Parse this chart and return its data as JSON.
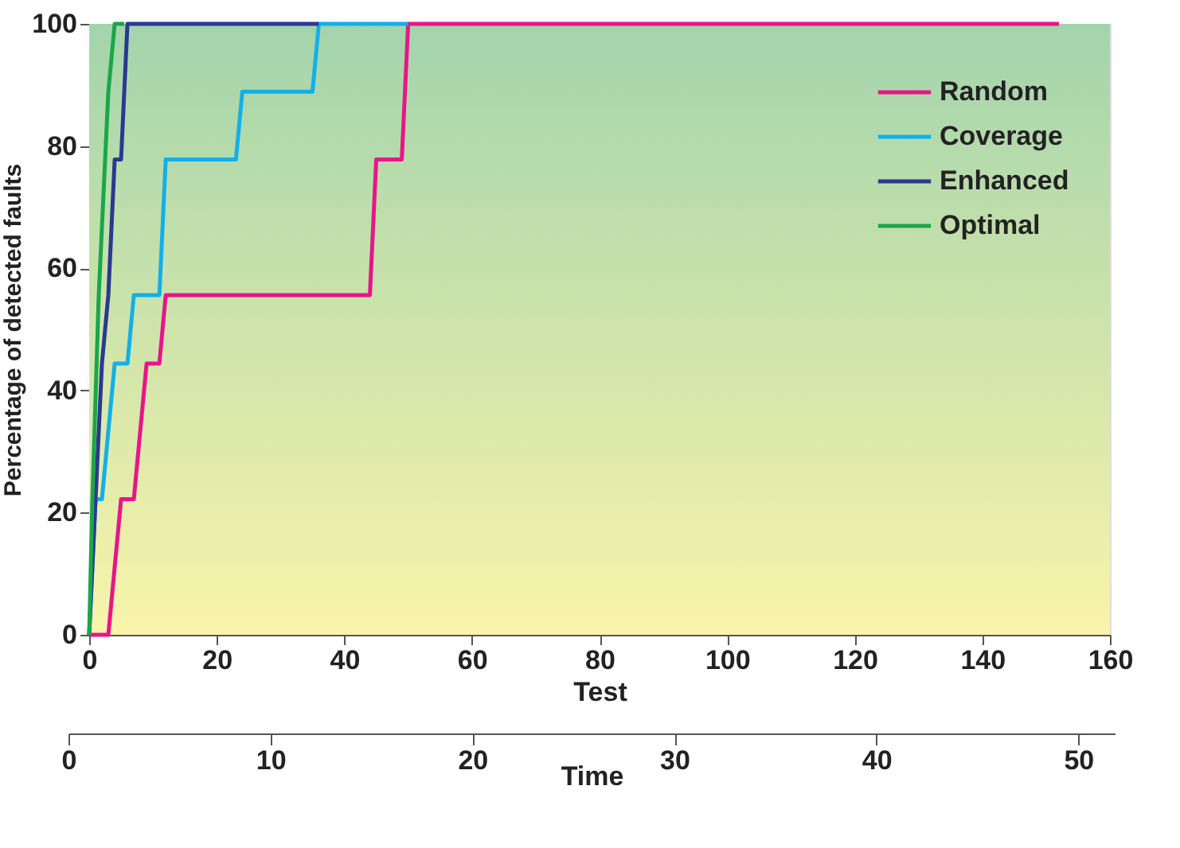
{
  "chart_data": {
    "type": "line",
    "xlabel": "Test",
    "ylabel": "Percentage of detected faults",
    "x2label": "Time",
    "xlim": [
      0,
      160
    ],
    "xticks": [
      0,
      20,
      40,
      60,
      80,
      100,
      120,
      140,
      160
    ],
    "ylim": [
      0,
      100
    ],
    "yticks": [
      0,
      20,
      40,
      60,
      80,
      100
    ],
    "x2lim": [
      0,
      51.8
    ],
    "x2ticks": [
      0,
      10,
      20,
      30,
      40,
      50
    ],
    "legend": "top right",
    "marker": "none",
    "line_style": "solid",
    "series": [
      {
        "name": "Random",
        "color": "#e6168a",
        "x": [
          0,
          3,
          5,
          7,
          9,
          11,
          12,
          44,
          45,
          49,
          50,
          152
        ],
        "values": [
          0,
          0,
          22.2,
          22.2,
          44.4,
          44.4,
          55.6,
          55.6,
          77.8,
          77.8,
          100,
          100
        ]
      },
      {
        "name": "Coverage",
        "color": "#12b0e8",
        "x": [
          0,
          1,
          2,
          4,
          6,
          7,
          11,
          12,
          23,
          24,
          35,
          36,
          50
        ],
        "values": [
          0,
          22.2,
          22.2,
          44.4,
          44.4,
          55.6,
          55.6,
          77.8,
          77.8,
          88.9,
          88.9,
          100,
          100
        ]
      },
      {
        "name": "Enhanced",
        "color": "#2b3990",
        "x": [
          0,
          1,
          2,
          3,
          4,
          5,
          6,
          36
        ],
        "values": [
          0,
          22.2,
          44.4,
          55.6,
          77.8,
          77.8,
          100,
          100
        ]
      },
      {
        "name": "Optimal",
        "color": "#1aa64a",
        "x": [
          0,
          0.5,
          1.5,
          2.5,
          3,
          4,
          5.5
        ],
        "values": [
          0,
          22.2,
          55.6,
          77.8,
          88.9,
          100,
          100
        ]
      }
    ]
  }
}
